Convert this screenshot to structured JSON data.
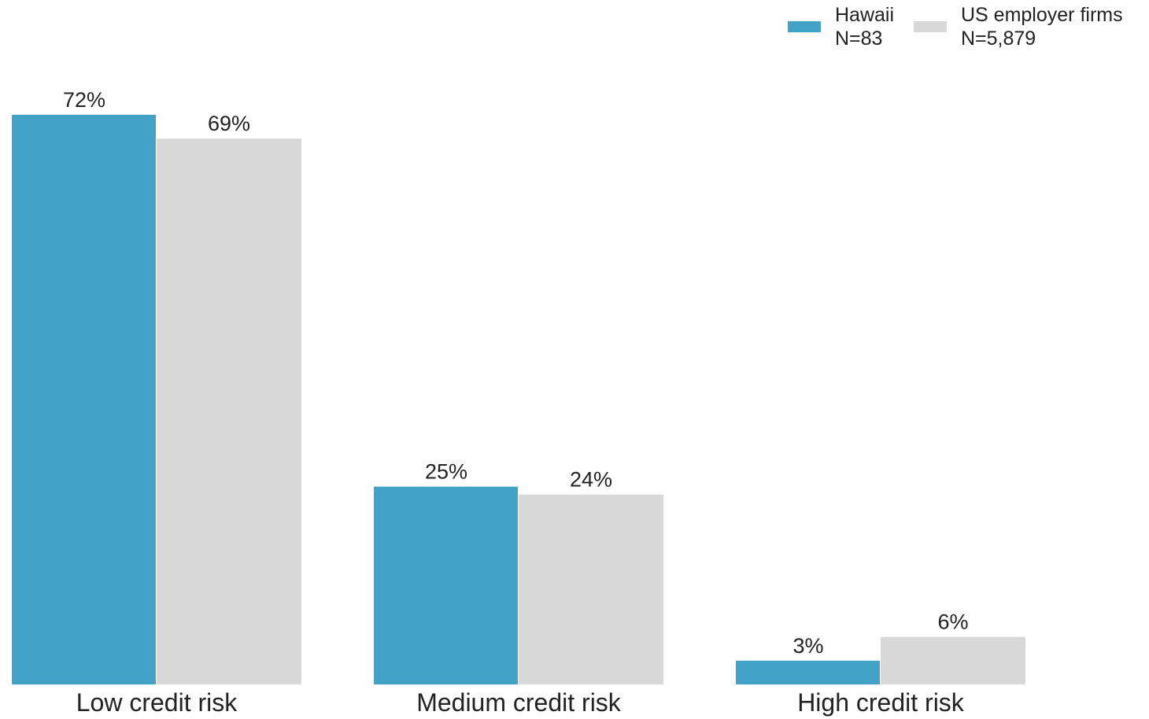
{
  "chart_data": {
    "type": "bar",
    "categories": [
      "Low credit risk",
      "Medium credit risk",
      "High credit risk"
    ],
    "series": [
      {
        "name": "Hawaii",
        "note": "N=83",
        "color": "#42a2c8",
        "values": [
          72,
          25,
          3
        ],
        "labels": [
          "72%",
          "25%",
          "3%"
        ]
      },
      {
        "name": "US employer firms",
        "note": "N=5,879",
        "color": "#d8d8d8",
        "values": [
          69,
          24,
          6
        ],
        "labels": [
          "69%",
          "24%",
          "6%"
        ]
      }
    ],
    "ylim": [
      0,
      72
    ],
    "unit": "%",
    "grid": false,
    "legend_position": "top-right"
  }
}
